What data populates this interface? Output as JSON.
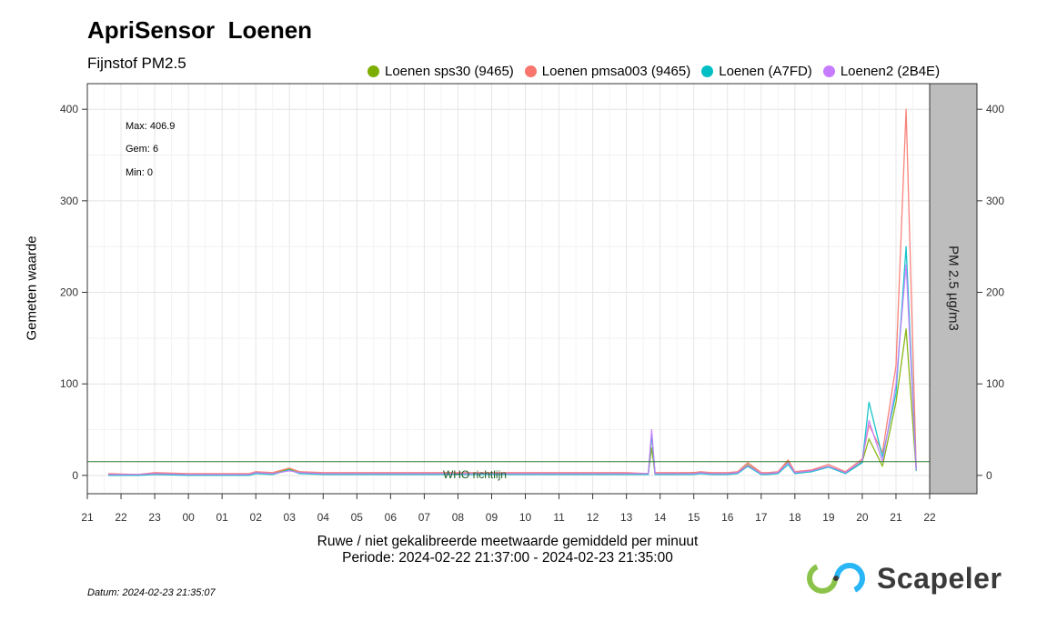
{
  "header": {
    "title": "ApriSensor  Loenen",
    "subtitle": "Fijnstof PM2.5"
  },
  "footer": {
    "datum": "Datum: 2024-02-23 21:35:07",
    "logo_text": "Scapeler"
  },
  "colors": {
    "who_line": "#2e7d32",
    "strip_fill": "#bdbdbd",
    "grid": "#ebebeb"
  },
  "chart_data": {
    "type": "line",
    "title": "",
    "xlabel": "Ruwe / niet gekalibreerde meetwaarde gemiddeld per minuut",
    "xlabel_period": "Periode: 2024-02-22 21:37:00 - 2024-02-23 21:35:00",
    "ylabel": "Gemeten waarde",
    "strip_label": "PM 2.5 µg/m3",
    "ylim": [
      -20,
      428
    ],
    "yticks": [
      0,
      100,
      200,
      300,
      400
    ],
    "xlim": [
      21.0,
      46.0
    ],
    "xticks": [
      21,
      22,
      23,
      24,
      25,
      26,
      27,
      28,
      29,
      30,
      31,
      32,
      33,
      34,
      35,
      36,
      37,
      38,
      39,
      40,
      41,
      42,
      43,
      44,
      45,
      46
    ],
    "xticklabels": [
      "21",
      "22",
      "23",
      "00",
      "01",
      "02",
      "03",
      "04",
      "05",
      "06",
      "07",
      "08",
      "09",
      "10",
      "11",
      "12",
      "13",
      "14",
      "15",
      "16",
      "17",
      "18",
      "19",
      "20",
      "21",
      "22"
    ],
    "grid": true,
    "legend_position": "top",
    "stats": {
      "max": "Max: 406.9",
      "mean": "Gem: 6",
      "min": "Min: 0"
    },
    "reference_line": {
      "label": "WHO richtlijn",
      "value": 15
    },
    "x": [
      21.62,
      22.5,
      23.0,
      24.0,
      25.0,
      25.8,
      26.0,
      26.5,
      27.0,
      27.3,
      28.0,
      29.0,
      30.0,
      31.0,
      32.0,
      33.0,
      34.0,
      35.0,
      36.0,
      37.0,
      37.65,
      37.75,
      37.85,
      38.0,
      38.2,
      38.5,
      39.0,
      39.2,
      39.5,
      40.0,
      40.3,
      40.6,
      41.0,
      41.2,
      41.5,
      41.8,
      42.0,
      42.5,
      43.0,
      43.5,
      44.0,
      44.2,
      44.6,
      45.0,
      45.3,
      45.6
    ],
    "series": [
      {
        "name": "Loenen sps30 (9465)",
        "color": "#7cae00",
        "values": [
          1,
          1,
          2,
          1,
          1,
          1,
          3,
          2,
          7,
          3,
          2,
          2,
          2,
          2,
          2,
          2,
          2,
          2,
          2,
          2,
          2,
          30,
          2,
          2,
          2,
          2,
          3,
          3,
          2,
          2,
          3,
          12,
          2,
          2,
          3,
          15,
          3,
          5,
          10,
          3,
          15,
          40,
          10,
          80,
          160,
          5
        ]
      },
      {
        "name": "Loenen pmsa003 (9465)",
        "color": "#f8766d",
        "values": [
          2,
          1,
          3,
          2,
          2,
          2,
          4,
          3,
          8,
          4,
          3,
          3,
          3,
          3,
          3,
          3,
          3,
          3,
          3,
          3,
          2,
          45,
          3,
          3,
          3,
          3,
          3,
          4,
          3,
          3,
          4,
          14,
          3,
          3,
          4,
          17,
          4,
          6,
          12,
          4,
          18,
          55,
          25,
          120,
          400,
          8
        ]
      },
      {
        "name": "Loenen (A7FD)",
        "color": "#00bfc4",
        "values": [
          0,
          0,
          1,
          0,
          0,
          0,
          2,
          1,
          6,
          2,
          1,
          1,
          1,
          1,
          1,
          1,
          1,
          1,
          1,
          1,
          1,
          45,
          1,
          1,
          1,
          1,
          1,
          2,
          1,
          1,
          2,
          10,
          1,
          1,
          2,
          12,
          2,
          4,
          9,
          2,
          14,
          80,
          20,
          90,
          250,
          5
        ]
      },
      {
        "name": "Loenen2 (2B4E)",
        "color": "#c77cff",
        "values": [
          1,
          1,
          2,
          1,
          1,
          1,
          3,
          2,
          5,
          3,
          2,
          2,
          2,
          2,
          2,
          2,
          2,
          2,
          2,
          2,
          2,
          50,
          2,
          2,
          2,
          2,
          2,
          3,
          2,
          2,
          3,
          11,
          2,
          2,
          3,
          14,
          3,
          5,
          10,
          3,
          16,
          60,
          15,
          100,
          230,
          6
        ]
      }
    ]
  }
}
